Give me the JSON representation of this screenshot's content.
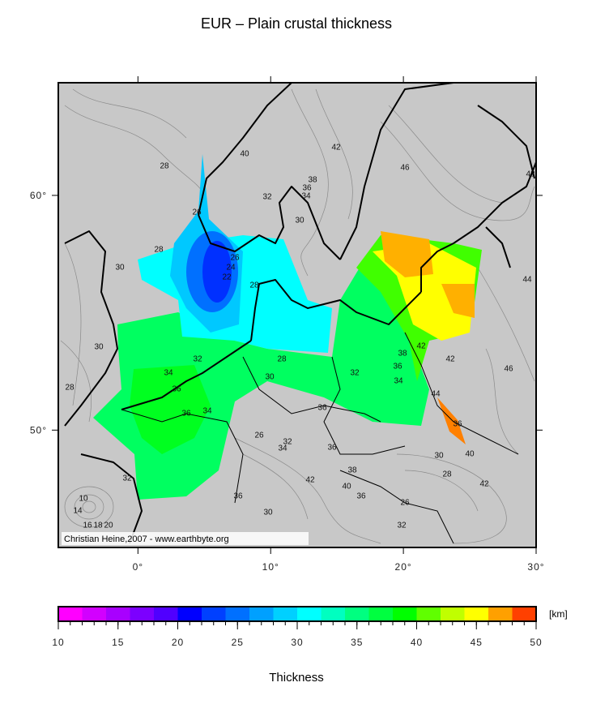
{
  "title": "EUR – Plain crustal thickness",
  "map": {
    "xlim": [
      -6,
      30
    ],
    "ylim": [
      45,
      64.8
    ],
    "xticks": [
      {
        "value": 0,
        "label": "0°"
      },
      {
        "value": 10,
        "label": "10°"
      },
      {
        "value": 20,
        "label": "20°"
      },
      {
        "value": 30,
        "label": "30°"
      }
    ],
    "yticks": [
      {
        "value": 50,
        "label": "50°"
      },
      {
        "value": 60,
        "label": "60°"
      }
    ],
    "credit": "Christian Heine,2007 - www.earthbyte.org",
    "contour_labels": [
      28,
      40,
      42,
      46,
      42,
      38,
      36,
      34,
      32,
      30,
      26,
      28,
      30,
      26,
      24,
      22,
      28,
      44,
      30,
      28,
      32,
      34,
      36,
      30,
      32,
      42,
      42,
      38,
      36,
      34,
      28,
      46,
      44,
      36,
      34,
      36,
      26,
      32,
      34,
      36,
      36,
      40,
      30,
      28,
      32,
      38,
      42,
      40,
      36,
      42,
      36,
      26,
      30,
      10,
      14,
      16,
      18,
      20,
      32
    ]
  },
  "colorbar": {
    "range": [
      10,
      50
    ],
    "ticks": [
      10,
      15,
      20,
      25,
      30,
      35,
      40,
      45,
      50
    ],
    "unit": "[km]",
    "label": "Thickness",
    "colors": [
      "#ff00ff",
      "#d200ff",
      "#a800ff",
      "#7c00ff",
      "#5000ff",
      "#0000ff",
      "#0040ff",
      "#0070ff",
      "#00a0ff",
      "#00d0ff",
      "#00ffff",
      "#00ffc0",
      "#00ff80",
      "#00ff40",
      "#00ff00",
      "#60ff00",
      "#c0ff00",
      "#ffff00",
      "#ffa000",
      "#ff4000"
    ]
  }
}
